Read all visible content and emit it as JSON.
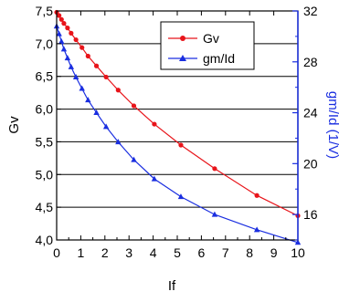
{
  "chart_data": {
    "type": "line",
    "title": "",
    "xlabel": "If",
    "ylabel": "Gv",
    "y2label": "gm/Id (1/V)",
    "xlim": [
      0,
      10
    ],
    "ylim": [
      4.0,
      7.5
    ],
    "y2lim": [
      14,
      32
    ],
    "grid": true,
    "legend_position": "top-right",
    "xticks": [
      "0",
      "1",
      "2",
      "3",
      "4",
      "5",
      "6",
      "7",
      "8",
      "9",
      "10"
    ],
    "yticks": [
      "4,0",
      "4,5",
      "5,0",
      "5,5",
      "6,0",
      "6,5",
      "7,0",
      "7,5"
    ],
    "y2ticks": [
      "16",
      "20",
      "24",
      "28",
      "32"
    ],
    "series": [
      {
        "name": "Gv",
        "axis": "left",
        "color": "#e8141a",
        "marker": "circle",
        "x": [
          0.0,
          0.1,
          0.2,
          0.3,
          0.45,
          0.6,
          0.8,
          1.05,
          1.3,
          1.65,
          2.05,
          2.55,
          3.2,
          4.05,
          5.15,
          6.55,
          8.3,
          10.0
        ],
        "y": [
          7.48,
          7.43,
          7.37,
          7.31,
          7.24,
          7.16,
          7.06,
          6.94,
          6.81,
          6.66,
          6.49,
          6.29,
          6.05,
          5.77,
          5.45,
          5.09,
          4.68,
          4.37
        ]
      },
      {
        "name": "gm/Id",
        "axis": "right",
        "color": "#1a2ee0",
        "marker": "triangle",
        "x": [
          0.0,
          0.1,
          0.2,
          0.3,
          0.45,
          0.6,
          0.8,
          1.05,
          1.3,
          1.65,
          2.05,
          2.55,
          3.2,
          4.05,
          5.15,
          6.55,
          8.3,
          10.0
        ],
        "y": [
          30.8,
          30.2,
          29.6,
          29.0,
          28.3,
          27.6,
          26.8,
          25.9,
          25.0,
          24.0,
          22.9,
          21.7,
          20.3,
          18.8,
          17.4,
          16.0,
          14.8,
          13.8
        ]
      }
    ]
  }
}
